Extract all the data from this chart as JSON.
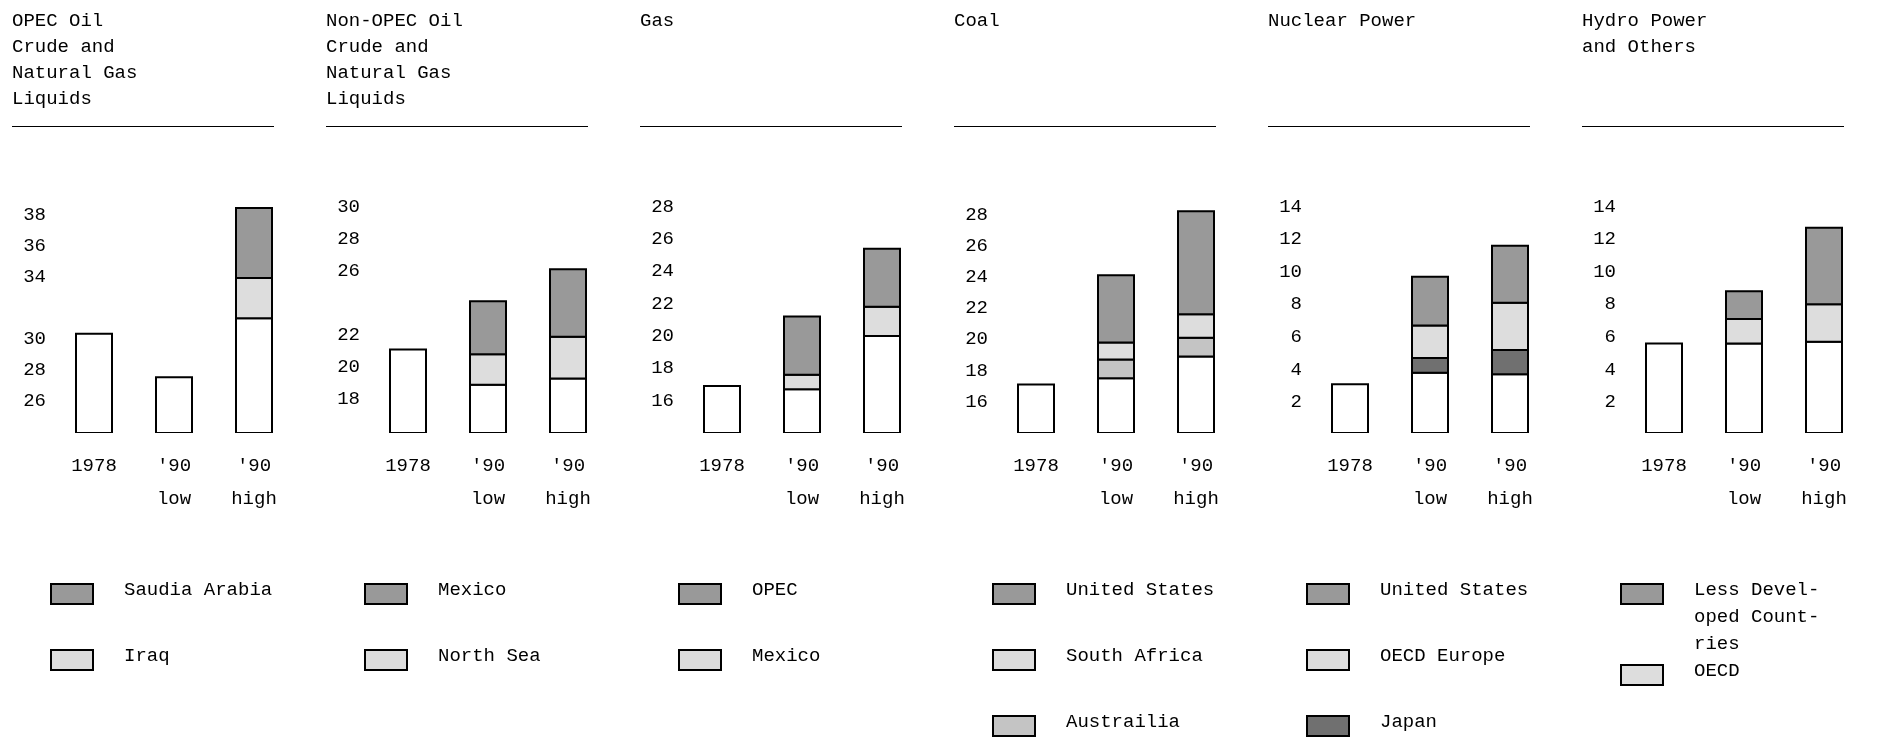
{
  "chart_data": [
    {
      "type": "bar",
      "stacked": true,
      "title": "OPEC Oil Crude and Natural Gas Liquids",
      "categories": [
        "1978",
        "'90 low",
        "'90 high"
      ],
      "series": [
        {
          "color": "#ffffff",
          "values": [
            30.2,
            27.4,
            31.2
          ]
        },
        {
          "name": "Iraq",
          "color": "#dddddd",
          "values": [
            null,
            null,
            2.6
          ],
          "base": [
            null,
            null,
            31.2
          ]
        },
        {
          "name": "Saudia Arabia",
          "color": "#999999",
          "values": [
            null,
            null,
            4.5
          ],
          "base": [
            null,
            null,
            33.8
          ]
        }
      ],
      "ylim": [
        23.8,
        38.5
      ],
      "yticks": [
        26,
        28,
        30,
        34,
        36,
        38
      ],
      "legend": "bottom"
    },
    {
      "type": "bar",
      "stacked": true,
      "title": "Non-OPEC Oil Crude and Natural Gas Liquids",
      "categories": [
        "1978",
        "'90 low",
        "'90 high"
      ],
      "series": [
        {
          "color": "#ffffff",
          "values": [
            21.0,
            18.8,
            19.2
          ]
        },
        {
          "name": "North Sea",
          "color": "#dddddd",
          "values": [
            null,
            1.9,
            2.6
          ],
          "base": [
            null,
            18.8,
            19.2
          ]
        },
        {
          "name": "Mexico",
          "color": "#999999",
          "values": [
            null,
            3.3,
            4.2
          ],
          "base": [
            null,
            20.7,
            21.8
          ]
        }
      ],
      "ylim": [
        15.8,
        30
      ],
      "yticks": [
        18,
        20,
        22,
        26,
        28,
        30
      ],
      "legend": "bottom"
    },
    {
      "type": "bar",
      "stacked": true,
      "title": "Gas",
      "categories": [
        "1978",
        "'90 low",
        "'90 high"
      ],
      "series": [
        {
          "color": "#ffffff",
          "values": [
            16.8,
            16.6,
            19.9
          ]
        },
        {
          "name": "Mexico",
          "color": "#dddddd",
          "values": [
            null,
            0.9,
            1.8
          ],
          "base": [
            null,
            16.6,
            19.9
          ]
        },
        {
          "name": "OPEC",
          "color": "#999999",
          "values": [
            null,
            3.6,
            3.6
          ],
          "base": [
            null,
            17.5,
            21.7
          ]
        }
      ],
      "ylim": [
        13.9,
        28
      ],
      "yticks": [
        16,
        18,
        20,
        22,
        24,
        26,
        28
      ],
      "legend": "bottom"
    },
    {
      "type": "bar",
      "stacked": true,
      "title": "Coal",
      "categories": [
        "1978",
        "'90 low",
        "'90 high"
      ],
      "series": [
        {
          "color": "#ffffff",
          "values": [
            17.0,
            17.4,
            18.8
          ]
        },
        {
          "name": "Austrailia",
          "color": "#c4c4c4",
          "values": [
            null,
            1.2,
            1.2
          ],
          "base": [
            null,
            17.4,
            18.8
          ]
        },
        {
          "name": "South Africa",
          "color": "#dddddd",
          "values": [
            null,
            1.1,
            1.5
          ],
          "base": [
            null,
            18.6,
            20.0
          ]
        },
        {
          "name": "United States",
          "color": "#999999",
          "values": [
            null,
            4.3,
            6.6
          ],
          "base": [
            null,
            19.7,
            21.5
          ]
        }
      ],
      "ylim": [
        13.9,
        28.5
      ],
      "yticks": [
        16,
        18,
        20,
        22,
        24,
        26,
        28
      ],
      "legend": "bottom"
    },
    {
      "type": "bar",
      "stacked": true,
      "title": "Nuclear Power",
      "categories": [
        "1978",
        "'90 low",
        "'90 high"
      ],
      "series": [
        {
          "color": "#ffffff",
          "values": [
            3.0,
            3.7,
            3.6
          ]
        },
        {
          "name": "Japan",
          "color": "#707070",
          "values": [
            null,
            0.9,
            1.5
          ]
        },
        {
          "name": "OECD Europe",
          "color": "#dddddd",
          "values": [
            null,
            2.0,
            2.9
          ]
        },
        {
          "name": "United States",
          "color": "#999999",
          "values": [
            null,
            3.0,
            3.5
          ]
        }
      ],
      "ylim": [
        0,
        14
      ],
      "yticks": [
        2,
        4,
        6,
        8,
        10,
        12,
        14
      ],
      "legend": "bottom"
    },
    {
      "type": "bar",
      "stacked": true,
      "title": "Hydro Power and Others",
      "categories": [
        "1978",
        "'90 low",
        "'90 high"
      ],
      "series": [
        {
          "color": "#ffffff",
          "values": [
            5.5,
            5.5,
            5.6
          ]
        },
        {
          "name": "OECD",
          "color": "#dddddd",
          "values": [
            null,
            1.5,
            2.3
          ]
        },
        {
          "name": "Less Devel-oped Count-ries",
          "color": "#999999",
          "values": [
            null,
            1.7,
            4.7
          ]
        }
      ],
      "ylim": [
        0,
        14
      ],
      "yticks": [
        2,
        4,
        6,
        8,
        10,
        12,
        14
      ],
      "legend": "bottom"
    }
  ]
}
